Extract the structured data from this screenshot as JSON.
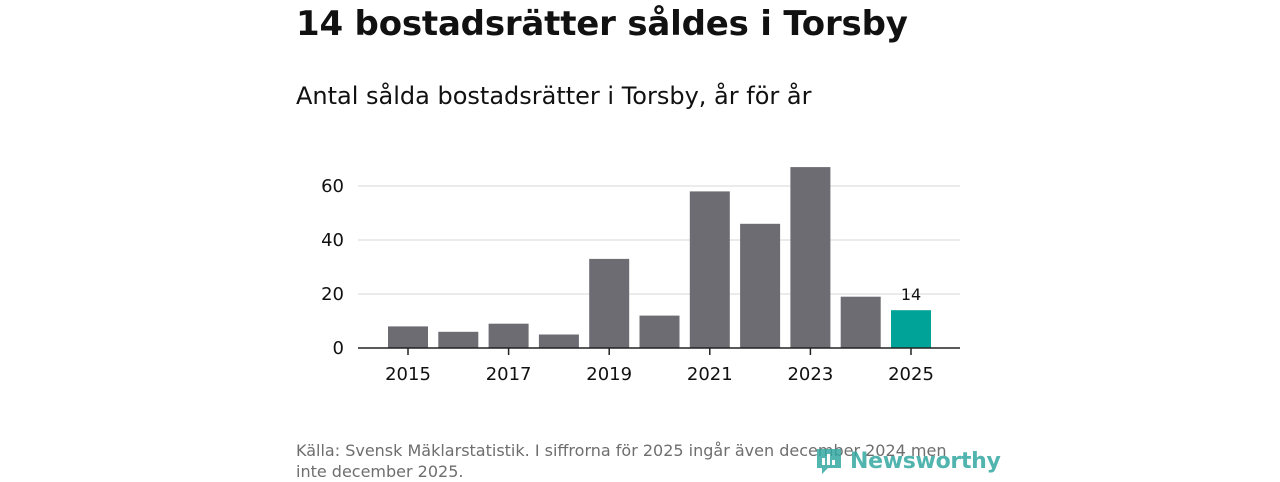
{
  "header": {
    "title": "14 bostadsrätter såldes i Torsby",
    "subtitle": "Antal sålda bostadsrätter i Torsby, år för år"
  },
  "chart_data": {
    "type": "bar",
    "title": "14 bostadsrätter såldes i Torsby",
    "subtitle": "Antal sålda bostadsrätter i Torsby, år för år",
    "categories": [
      "2015",
      "2016",
      "2017",
      "2018",
      "2019",
      "2020",
      "2021",
      "2022",
      "2023",
      "2024",
      "2025"
    ],
    "values": [
      8,
      6,
      9,
      5,
      33,
      12,
      58,
      46,
      67,
      19,
      14
    ],
    "x_tick_labels": [
      "2015",
      "2017",
      "2019",
      "2021",
      "2023",
      "2025"
    ],
    "y_ticks": [
      0,
      20,
      40,
      60
    ],
    "ylim": [
      0,
      70
    ],
    "xlabel": "",
    "ylabel": "",
    "grid": true,
    "highlight_category": "2025",
    "data_labels": [
      {
        "category": "2025",
        "text": "14"
      }
    ],
    "colors": {
      "bar": "#6d6c72",
      "highlight": "#00a397"
    }
  },
  "footer": {
    "source": "Källa: Svensk Mäklarstatistik. I siffrorna för 2025 ingår även december 2024 men inte december 2025.",
    "brand": "Newsworthy",
    "brand_icon": "bar-chart-speech-bubble-icon",
    "brand_color": "#35a8a1"
  }
}
